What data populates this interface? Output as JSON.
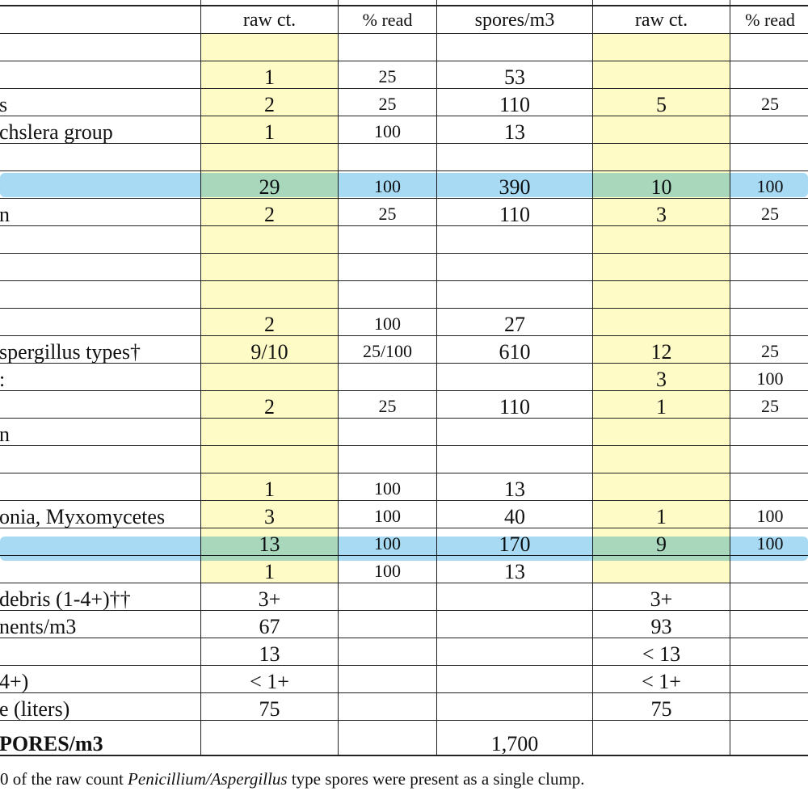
{
  "table": {
    "header": [
      null,
      "raw ct.",
      "% read",
      "spores/m3",
      "raw ct.",
      "% read"
    ],
    "rows": [
      [
        null,
        null,
        null,
        null,
        null,
        null
      ],
      [
        null,
        "1",
        "25",
        "53",
        null,
        null
      ],
      [
        "s",
        "2",
        "25",
        "110",
        "5",
        "25"
      ],
      [
        "chslera group",
        "1",
        "100",
        "13",
        null,
        null
      ],
      [
        null,
        null,
        null,
        null,
        null,
        null
      ],
      [
        null,
        "29",
        "100",
        "390",
        "10",
        "100"
      ],
      [
        "n",
        "2",
        "25",
        "110",
        "3",
        "25"
      ],
      [
        null,
        null,
        null,
        null,
        null,
        null
      ],
      [
        null,
        null,
        null,
        null,
        null,
        null
      ],
      [
        null,
        null,
        null,
        null,
        null,
        null
      ],
      [
        null,
        "2",
        "100",
        "27",
        null,
        null
      ],
      [
        "spergillus types†",
        "9/10",
        "25/100",
        "610",
        "12",
        "25"
      ],
      [
        ":",
        null,
        null,
        null,
        "3",
        "100"
      ],
      [
        null,
        "2",
        "25",
        "110",
        "1",
        "25"
      ],
      [
        "n",
        null,
        null,
        null,
        null,
        null
      ],
      [
        null,
        null,
        null,
        null,
        null,
        null
      ],
      [
        null,
        "1",
        "100",
        "13",
        null,
        null
      ],
      [
        "onia, Myxomycetes",
        "3",
        "100",
        "40",
        "1",
        "100"
      ],
      [
        null,
        "13",
        "100",
        "170",
        "9",
        "100"
      ],
      [
        null,
        "1",
        "100",
        "13",
        null,
        null
      ],
      [
        "debris (1-4+)††",
        "3+",
        null,
        null,
        "3+",
        null
      ],
      [
        "nents/m3",
        "67",
        null,
        null,
        "93",
        null
      ],
      [
        null,
        "13",
        null,
        null,
        "< 13",
        null
      ],
      [
        "4+)",
        "< 1+",
        null,
        null,
        "< 1+",
        null
      ],
      [
        "e (liters)",
        "75",
        null,
        null,
        "75",
        null
      ],
      [
        "PORES/m3",
        null,
        null,
        "1,700",
        null,
        null
      ]
    ]
  },
  "footnote": {
    "before": "0 of the raw count ",
    "italic": "Penicillium/Aspergillus",
    "after": " type spores were present as a single clump."
  }
}
